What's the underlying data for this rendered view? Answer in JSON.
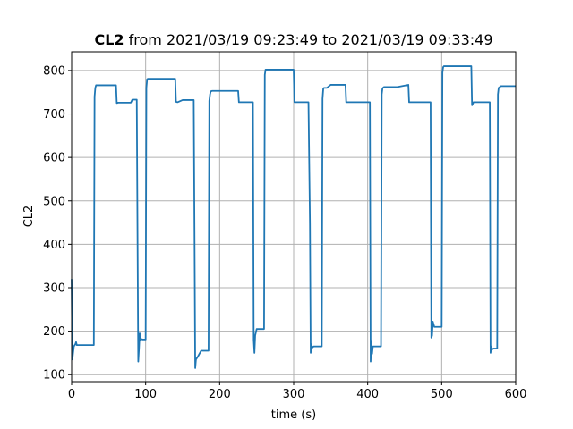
{
  "chart_data": {
    "type": "line",
    "title_bold": "CL2",
    "title_rest": " from 2021/03/19 09:23:49 to 2021/03/19 09:33:49",
    "xlabel": "time (s)",
    "ylabel": "CL2",
    "xlim": [
      0,
      600
    ],
    "ylim": [
      84,
      843
    ],
    "xticks": [
      0,
      100,
      200,
      300,
      400,
      500,
      600
    ],
    "yticks": [
      100,
      200,
      300,
      400,
      500,
      600,
      700,
      800
    ],
    "grid": true,
    "series": [
      {
        "color": "#1f77b4",
        "x": [
          0,
          1,
          3,
          5,
          6,
          7,
          10,
          30,
          31,
          32,
          33,
          35,
          40,
          60,
          61,
          63,
          70,
          80,
          82,
          88,
          89,
          90,
          91,
          92,
          93,
          94,
          96,
          100,
          101,
          102,
          103,
          104,
          110,
          140,
          141,
          143,
          150,
          165,
          166,
          167,
          168,
          170,
          175,
          177,
          185,
          186,
          187,
          188,
          190,
          200,
          225,
          226,
          228,
          245,
          246,
          247,
          248,
          250,
          255,
          260,
          261,
          262,
          263,
          265,
          280,
          300,
          301,
          303,
          320,
          322,
          323,
          324,
          325,
          327,
          330,
          338,
          339,
          340,
          341,
          343,
          345,
          350,
          370,
          371,
          373,
          390,
          403,
          404,
          405,
          406,
          407,
          408,
          410,
          418,
          419,
          420,
          422,
          425,
          440,
          455,
          456,
          458,
          470,
          485,
          486,
          487,
          488,
          490,
          493,
          500,
          501,
          502,
          503,
          505,
          510,
          540,
          541,
          543,
          555,
          565,
          566,
          567,
          568,
          570,
          573,
          575,
          576,
          577,
          580,
          600
        ],
        "y": [
          320,
          135,
          165,
          170,
          175,
          168,
          168,
          168,
          740,
          760,
          766,
          766,
          766,
          766,
          725,
          726,
          726,
          726,
          733,
          733,
          430,
          130,
          160,
          195,
          180,
          182,
          181,
          181,
          760,
          780,
          781,
          781,
          781,
          781,
          728,
          727,
          732,
          732,
          430,
          115,
          135,
          140,
          155,
          155,
          155,
          730,
          745,
          752,
          753,
          753,
          753,
          727,
          727,
          727,
          180,
          150,
          190,
          205,
          205,
          205,
          790,
          802,
          802,
          802,
          802,
          802,
          727,
          727,
          727,
          450,
          150,
          170,
          162,
          165,
          165,
          165,
          735,
          758,
          760,
          760,
          760,
          767,
          767,
          727,
          727,
          727,
          727,
          130,
          178,
          148,
          165,
          165,
          165,
          165,
          745,
          759,
          762,
          762,
          762,
          767,
          727,
          727,
          727,
          727,
          185,
          190,
          222,
          210,
          210,
          210,
          795,
          808,
          810,
          810,
          810,
          810,
          720,
          727,
          727,
          727,
          150,
          165,
          158,
          160,
          160,
          160,
          745,
          760,
          764,
          764
        ]
      }
    ]
  }
}
